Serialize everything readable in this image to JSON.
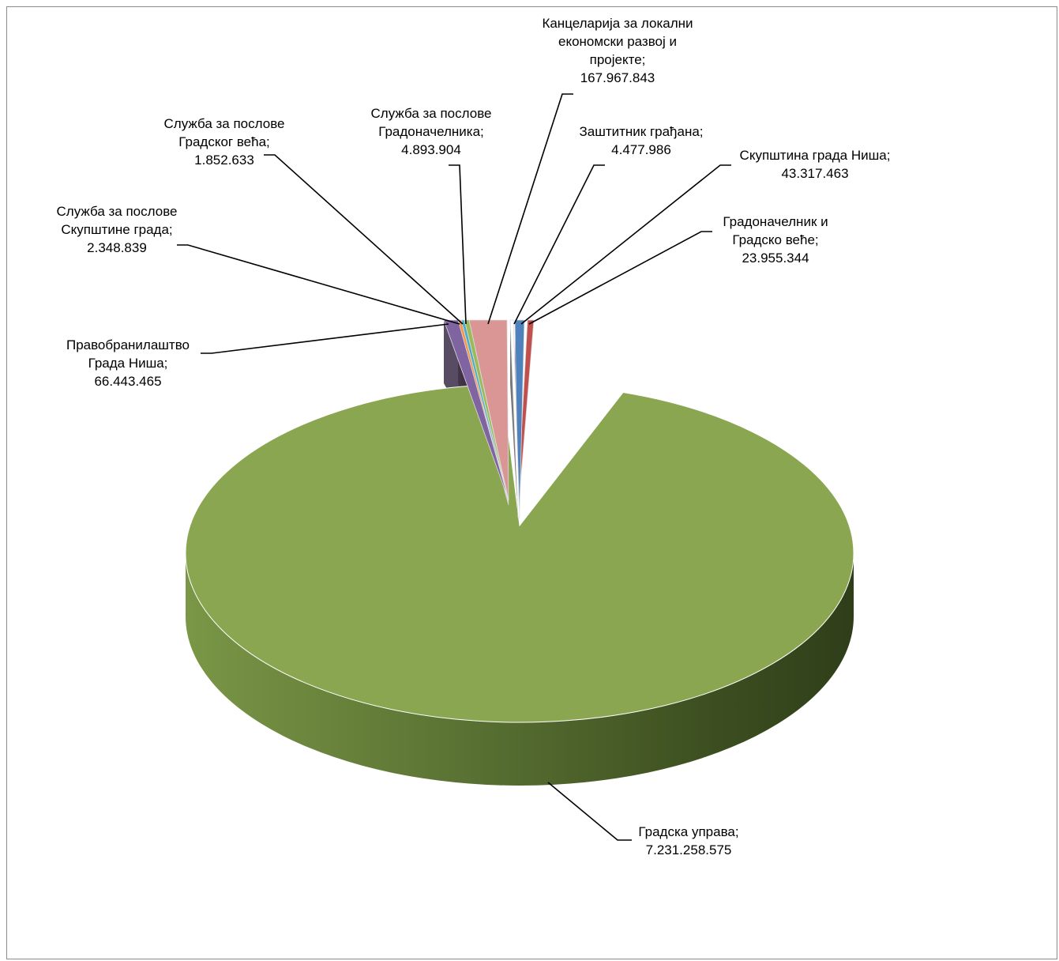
{
  "chart_data": {
    "type": "pie",
    "title": "",
    "legend": "none",
    "slices": [
      {
        "label_lines": [
          "Градоначелник и",
          "Градско веће;",
          "23.955.344"
        ],
        "name": "Градоначелник и Градско веће",
        "value": 23955344,
        "color": "#c0504d"
      },
      {
        "label_lines": [
          "Скупштина града Ниша;",
          "43.317.463"
        ],
        "name": "Скупштина града Ниша",
        "value": 43317463,
        "color": "#4f81bd"
      },
      {
        "label_lines": [
          "Заштитник грађана;",
          "4.477.986"
        ],
        "name": "Заштитник грађана",
        "value": 4477986,
        "color": "#ffffff"
      },
      {
        "label_lines": [
          "Канцеларија за локални",
          "економски развој и",
          "пројекте;",
          "167.967.843"
        ],
        "name": "Канцеларија за локални економски развој и пројекте",
        "value": 167967843,
        "color": "#d99694"
      },
      {
        "label_lines": [
          "Служба за послове",
          "Градоначелника;",
          "4.893.904"
        ],
        "name": "Служба за послове Градоначелника",
        "value": 4893904,
        "color": "#9bbb59"
      },
      {
        "label_lines": [
          "Служба за послове",
          "Градског већа;",
          "1.852.633"
        ],
        "name": "Служба за послове Градског већа",
        "value": 1852633,
        "color": "#4bacc6"
      },
      {
        "label_lines": [
          "Служба за послове",
          "Скупштине града;",
          "2.348.839"
        ],
        "name": "Служба за послове Скупштине града",
        "value": 2348839,
        "color": "#f79646"
      },
      {
        "label_lines": [
          "Правобранилаштво",
          "Града Ниша;",
          "66.443.465"
        ],
        "name": "Правобранилаштво Града Ниша",
        "value": 66443465,
        "color": "#8064a2"
      },
      {
        "label_lines": [
          "Градска управа;",
          "7.231.258.575"
        ],
        "name": "Градска управа",
        "value": 7231258575,
        "color": "#8aa650"
      }
    ]
  }
}
